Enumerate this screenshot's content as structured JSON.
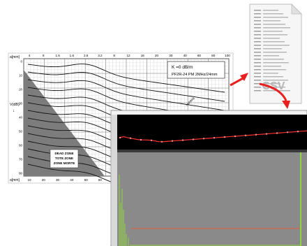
{
  "dgs_chart": {
    "y_axis_label": "V(dB)",
    "y_axis_sublabel": "↓",
    "x_axis_label": "a[mm]",
    "top_axis_label": "a[mm]",
    "top_ticks": [
      "4",
      "8",
      "1.6",
      "1.6",
      "2.5",
      "3.2",
      "8",
      "12",
      "16",
      "20",
      "30",
      "40",
      "60",
      "80",
      "100"
    ],
    "bottom_ticks": [
      "10",
      "20",
      "30",
      "40",
      "50",
      "60",
      "80",
      "100",
      "200",
      "300",
      "400",
      "500",
      "600",
      "800",
      "1000"
    ],
    "left_ticks": [
      "0",
      "10",
      "20",
      "30",
      "40",
      "50",
      "60",
      "70",
      "80"
    ],
    "legend_line1": "K =0   dB/m",
    "legend_line2": "PF2R-24  PM  2MHz/24mm",
    "dead_zone": [
      "DEAD ZONE",
      "TOTE ZONE",
      "ZONE MORTE"
    ],
    "near_field_label": "Nahfeld"
  },
  "csv_document": {
    "extension_label": "CSV",
    "row_count": 24
  },
  "scope_window": {
    "background": "#000000",
    "trace_color": "#ff3030",
    "panel_bg": "#8a8a8a",
    "accent_green": "#8fd43c"
  },
  "colors": {
    "arrow": "#e82020"
  }
}
